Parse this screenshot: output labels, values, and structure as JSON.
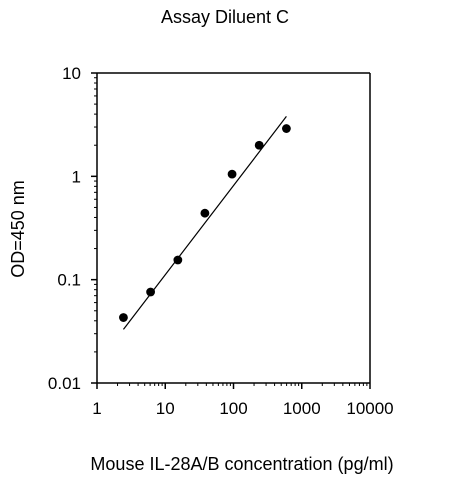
{
  "chart_data": {
    "type": "scatter",
    "title": "Assay Diluent C",
    "xlabel": "Mouse IL-28A/B concentration (pg/ml)",
    "ylabel": "OD=450 nm",
    "x_scale": "log",
    "y_scale": "log",
    "xlim": [
      1,
      10000
    ],
    "ylim": [
      0.01,
      10
    ],
    "x_ticks": [
      1,
      10,
      100,
      1000,
      10000
    ],
    "x_tick_labels": [
      "1",
      "10",
      "100",
      "1000",
      "10000"
    ],
    "y_ticks": [
      0.01,
      0.1,
      1,
      10
    ],
    "y_tick_labels": [
      "0.01",
      "0.1",
      "1",
      "10"
    ],
    "grid": false,
    "legend": "none",
    "series": [
      {
        "points": [
          {
            "x": 2.44,
            "y": 0.043
          },
          {
            "x": 6.1,
            "y": 0.076
          },
          {
            "x": 15.3,
            "y": 0.155
          },
          {
            "x": 38.1,
            "y": 0.44
          },
          {
            "x": 95.3,
            "y": 1.05
          },
          {
            "x": 238,
            "y": 2.0
          },
          {
            "x": 596,
            "y": 2.9
          }
        ]
      }
    ],
    "fit_line": {
      "x": [
        2.44,
        596
      ],
      "y": [
        0.033,
        3.8
      ]
    },
    "colors": {
      "axis": "#000000",
      "points": "#000000",
      "fit": "#000000"
    }
  }
}
